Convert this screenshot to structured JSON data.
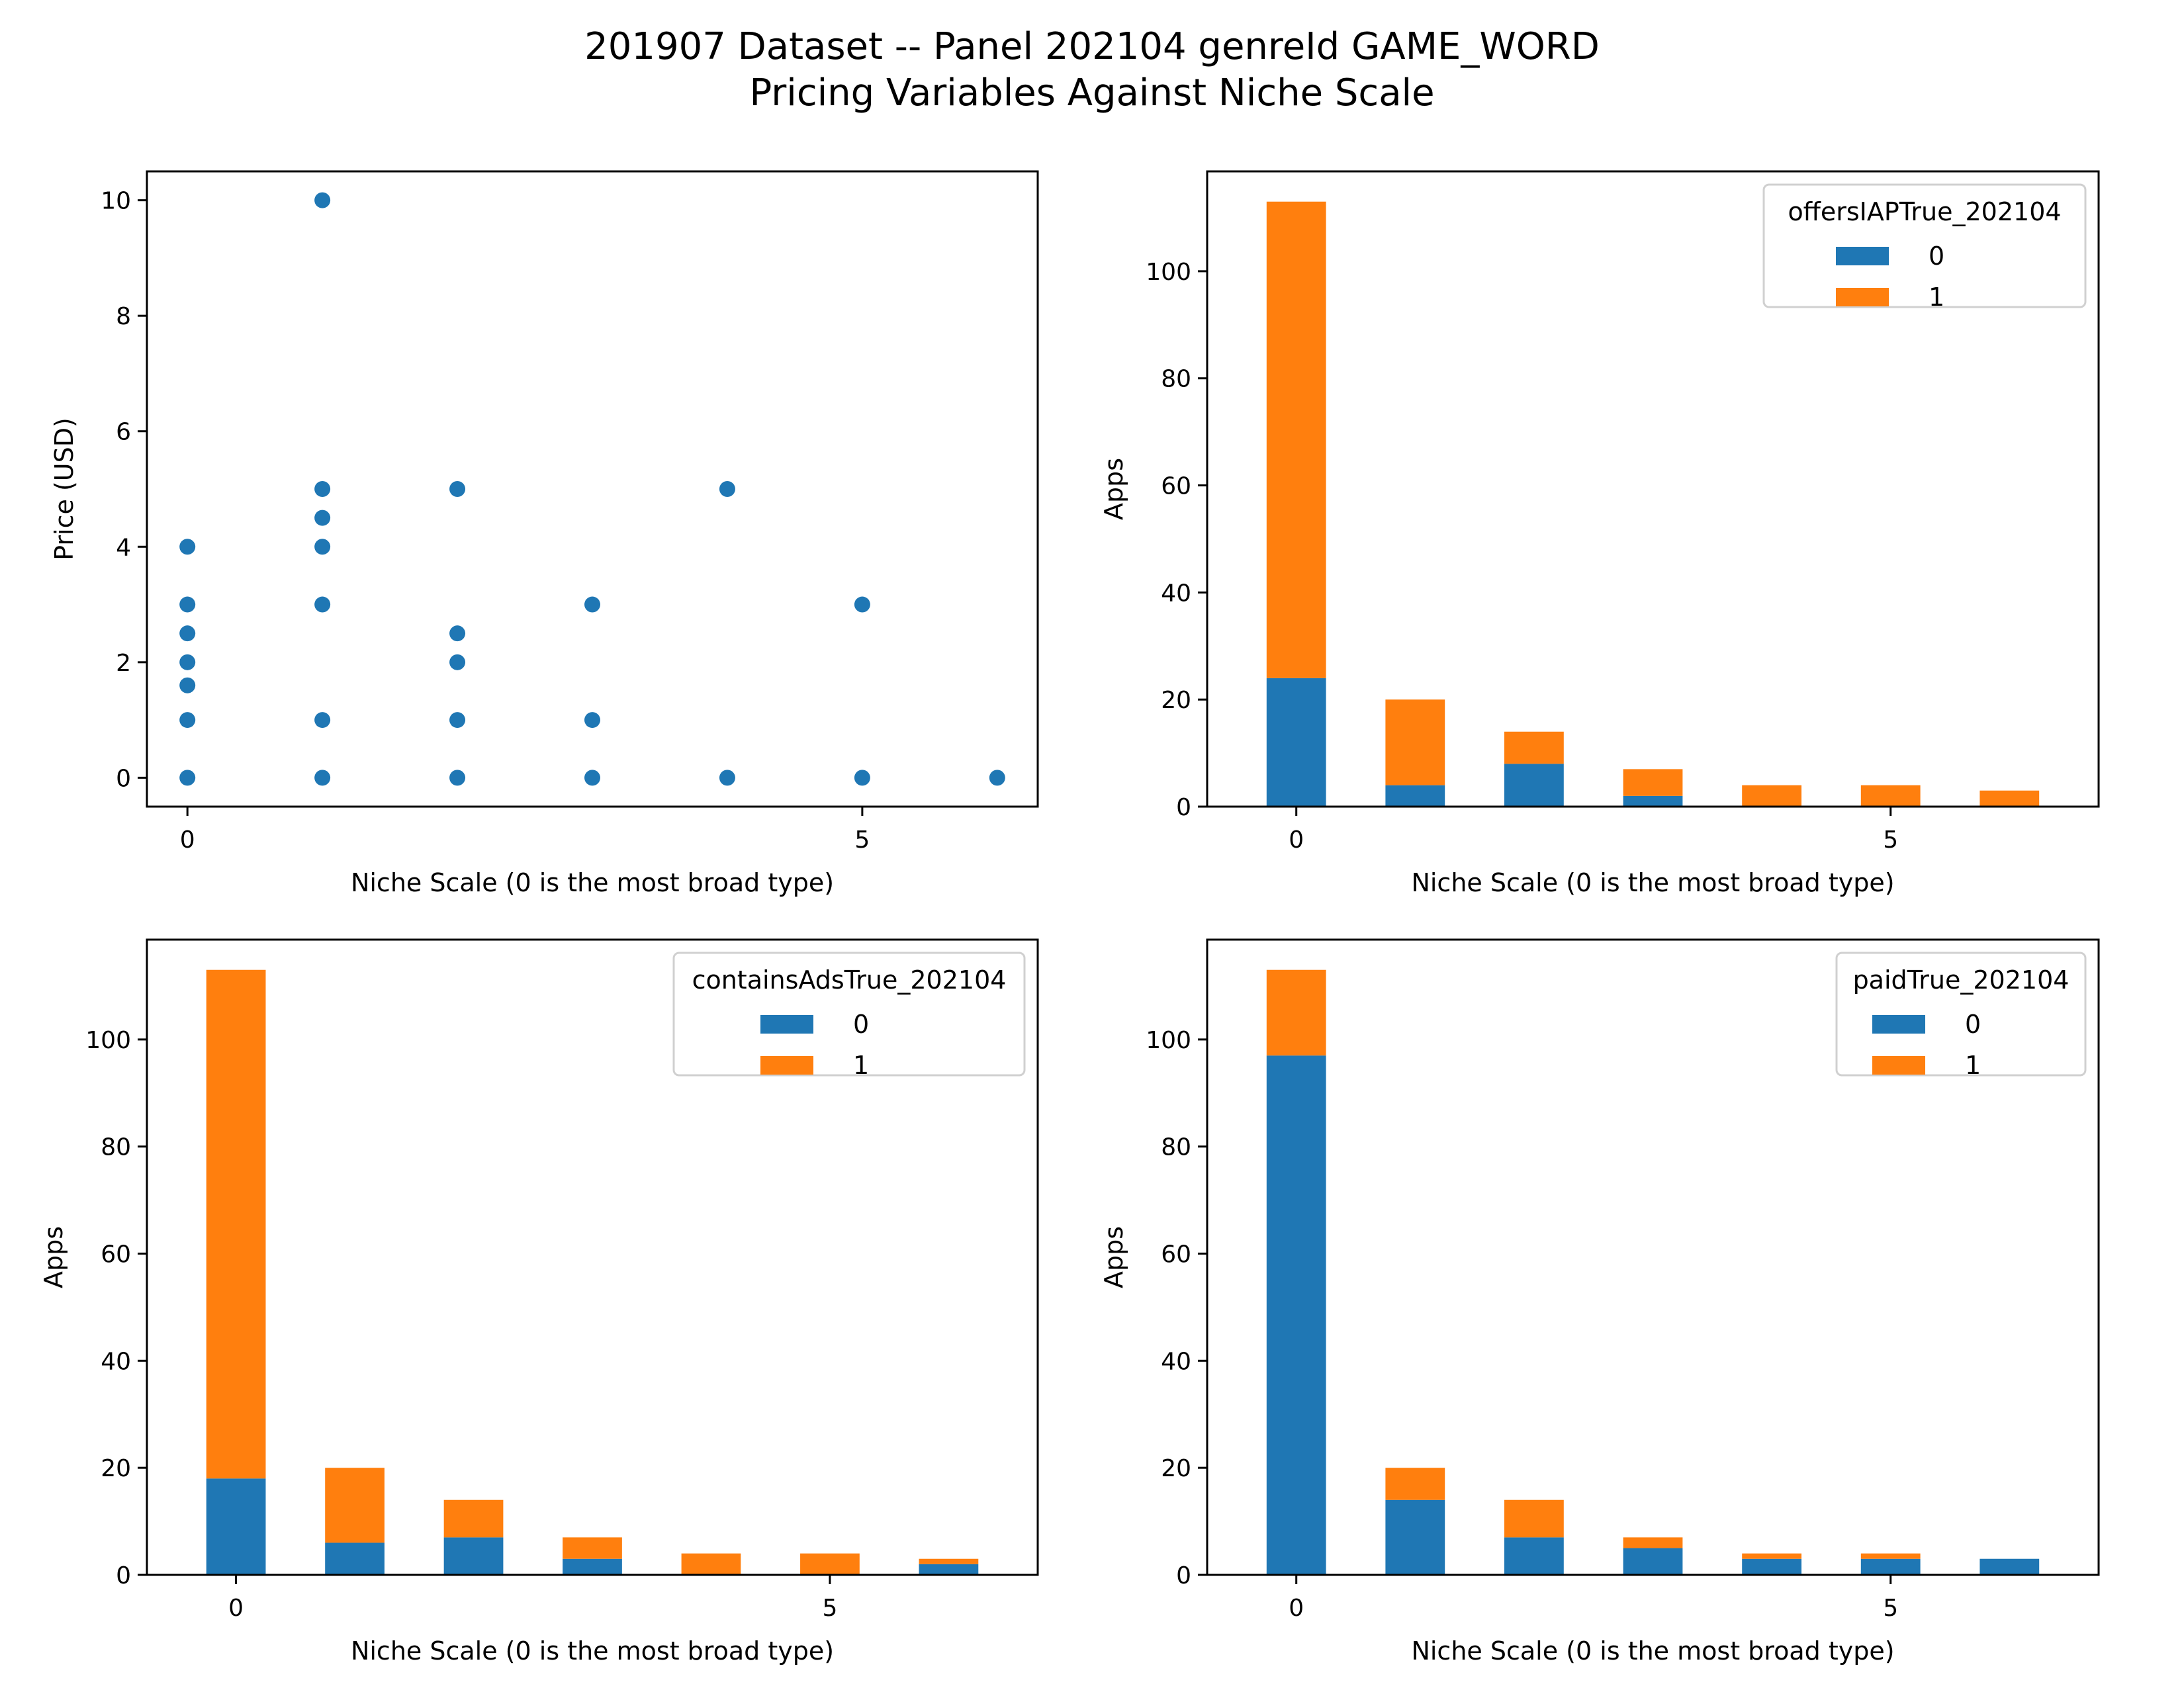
{
  "figure": {
    "title_line1": "201907 Dataset -- Panel 202104 genreId GAME_WORD",
    "title_line2": "Pricing Variables Against Niche Scale"
  },
  "colors": {
    "series0": "#1f77b4",
    "series1": "#ff7f0e",
    "axis": "#000000"
  },
  "chart_data": [
    {
      "type": "scatter",
      "xlabel": "Niche Scale (0 is the most broad type)",
      "ylabel": "Price (USD)",
      "xlim": [
        -0.3,
        6.3
      ],
      "ylim": [
        -0.5,
        10.5
      ],
      "xticks": [
        0,
        5
      ],
      "yticks": [
        0,
        2,
        4,
        6,
        8,
        10
      ],
      "points": [
        [
          0,
          0
        ],
        [
          0,
          1
        ],
        [
          0,
          1.6
        ],
        [
          0,
          2
        ],
        [
          0,
          2.5
        ],
        [
          0,
          3
        ],
        [
          0,
          4
        ],
        [
          1,
          0
        ],
        [
          1,
          1
        ],
        [
          1,
          3
        ],
        [
          1,
          4
        ],
        [
          1,
          4.5
        ],
        [
          1,
          5
        ],
        [
          1,
          10
        ],
        [
          2,
          0
        ],
        [
          2,
          1
        ],
        [
          2,
          2
        ],
        [
          2,
          2.5
        ],
        [
          2,
          5
        ],
        [
          3,
          0
        ],
        [
          3,
          1
        ],
        [
          3,
          3
        ],
        [
          4,
          0
        ],
        [
          4,
          5
        ],
        [
          5,
          0
        ],
        [
          5,
          3
        ],
        [
          6,
          0
        ]
      ]
    },
    {
      "type": "bar",
      "stacked": true,
      "xlabel": "Niche Scale (0 is the most broad type)",
      "ylabel": "Apps",
      "categories": [
        0,
        1,
        2,
        3,
        4,
        5,
        6
      ],
      "xticks": [
        0,
        5
      ],
      "yticks": [
        0,
        20,
        40,
        60,
        80,
        100
      ],
      "ylim": [
        0,
        118.65
      ],
      "legend_title": "offersIAPTrue_202104",
      "legend_position": "top-right",
      "series": [
        {
          "name": "0",
          "values": [
            24,
            4,
            8,
            2,
            0,
            0,
            0
          ]
        },
        {
          "name": "1",
          "values": [
            89,
            16,
            6,
            5,
            4,
            4,
            3
          ]
        }
      ]
    },
    {
      "type": "bar",
      "stacked": true,
      "xlabel": "Niche Scale (0 is the most broad type)",
      "ylabel": "Apps",
      "categories": [
        0,
        1,
        2,
        3,
        4,
        5,
        6
      ],
      "xticks": [
        0,
        5
      ],
      "yticks": [
        0,
        20,
        40,
        60,
        80,
        100
      ],
      "ylim": [
        0,
        118.65
      ],
      "legend_title": "containsAdsTrue_202104",
      "legend_position": "top-right",
      "series": [
        {
          "name": "0",
          "values": [
            18,
            6,
            7,
            3,
            0,
            0,
            2
          ]
        },
        {
          "name": "1",
          "values": [
            95,
            14,
            7,
            4,
            4,
            4,
            1
          ]
        }
      ]
    },
    {
      "type": "bar",
      "stacked": true,
      "xlabel": "Niche Scale (0 is the most broad type)",
      "ylabel": "Apps",
      "categories": [
        0,
        1,
        2,
        3,
        4,
        5,
        6
      ],
      "xticks": [
        0,
        5
      ],
      "yticks": [
        0,
        20,
        40,
        60,
        80,
        100
      ],
      "ylim": [
        0,
        118.65
      ],
      "legend_title": "paidTrue_202104",
      "legend_position": "top-right",
      "series": [
        {
          "name": "0",
          "values": [
            97,
            14,
            7,
            5,
            3,
            3,
            3
          ]
        },
        {
          "name": "1",
          "values": [
            16,
            6,
            7,
            2,
            1,
            1,
            0
          ]
        }
      ]
    }
  ]
}
